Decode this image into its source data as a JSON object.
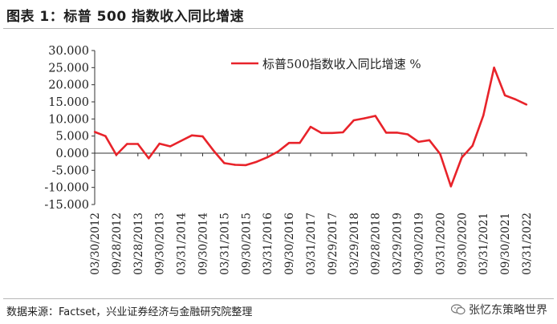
{
  "figure": {
    "title": "图表 1：标普 500 指数收入同比增速",
    "source": "数据来源：Factset，兴业证券经济与金融研究院整理",
    "watermark": "张忆东策略世界",
    "watermark_icon": "wechat-icon"
  },
  "colors": {
    "series": "#e8232a",
    "axis": "#333333"
  },
  "chart_data": {
    "type": "line",
    "title": "",
    "xlabel": "",
    "ylabel": "",
    "ylim": [
      -15,
      30
    ],
    "yticks": [
      "30.000",
      "25.000",
      "20.000",
      "15.000",
      "10.000",
      "5.000",
      "0.000",
      "-5.000",
      "-10.000",
      "-15.000"
    ],
    "ytick_values": [
      30,
      25,
      20,
      15,
      10,
      5,
      0,
      -5,
      -10,
      -15
    ],
    "xtick_labels": [
      "03/30/2012",
      "09/28/2012",
      "03/28/2013",
      "09/30/2013",
      "03/31/2014",
      "09/30/2014",
      "03/31/2015",
      "09/30/2015",
      "03/31/2016",
      "09/30/2016",
      "03/31/2017",
      "09/29/2017",
      "03/29/2018",
      "09/28/2018",
      "03/29/2019",
      "09/30/2019",
      "03/31/2020",
      "09/30/2020",
      "03/31/2021",
      "09/30/2021",
      "03/31/2022"
    ],
    "legend": {
      "label": "标普500指数收入同比增速 %",
      "position": "top-right"
    },
    "grid": false,
    "series": [
      {
        "name": "标普500指数收入同比增速 %",
        "values": [
          6.2,
          5.0,
          -0.5,
          2.7,
          2.7,
          -1.5,
          2.8,
          2.0,
          3.6,
          5.2,
          4.9,
          0.8,
          -2.9,
          -3.4,
          -3.5,
          -2.5,
          -1.2,
          0.5,
          3.0,
          3.0,
          7.7,
          5.9,
          5.9,
          6.1,
          9.6,
          10.2,
          10.9,
          6.0,
          6.0,
          5.5,
          3.3,
          3.8,
          -0.2,
          -9.7,
          -1.3,
          2.2,
          11.0,
          25.0,
          16.9,
          15.7,
          14.2
        ]
      }
    ]
  }
}
